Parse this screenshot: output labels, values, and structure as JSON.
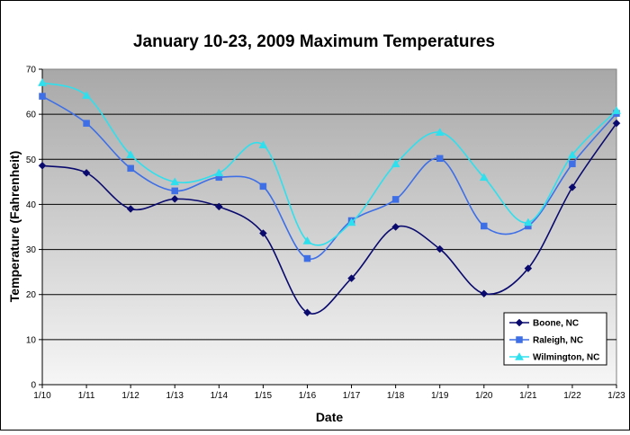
{
  "chart_data": {
    "type": "line",
    "title": "January 10-23, 2009 Maximum Temperatures",
    "xlabel": "Date",
    "ylabel": "Temperature (Fahrenheit)",
    "categories": [
      "1/10",
      "1/11",
      "1/12",
      "1/13",
      "1/14",
      "1/15",
      "1/16",
      "1/17",
      "1/18",
      "1/19",
      "1/20",
      "1/21",
      "1/22",
      "1/23"
    ],
    "ylim": [
      0,
      70
    ],
    "yticks": [
      "0",
      "10",
      "20",
      "30",
      "40",
      "50",
      "60",
      "70"
    ],
    "grid": true,
    "smooth": true,
    "legend_position": "bottom-right",
    "series": [
      {
        "name": "Boone, NC",
        "color": "#0a0a6e",
        "marker": "diamond",
        "values": [
          48.6,
          47,
          39,
          41.2,
          39.5,
          33.6,
          16,
          23.6,
          35,
          30.1,
          20.2,
          25.8,
          43.8,
          58
        ]
      },
      {
        "name": "Raleigh, NC",
        "color": "#3f6fe6",
        "marker": "square",
        "values": [
          64,
          58,
          48,
          43,
          46,
          44,
          28,
          36.4,
          41.1,
          50.2,
          35.2,
          35.2,
          49,
          60.2
        ]
      },
      {
        "name": "Wilmington, NC",
        "color": "#2ee0ee",
        "marker": "triangle",
        "values": [
          67,
          64.2,
          51,
          45,
          47,
          53.2,
          31.9,
          36,
          49,
          56,
          46,
          36,
          51,
          60.8
        ]
      }
    ]
  }
}
